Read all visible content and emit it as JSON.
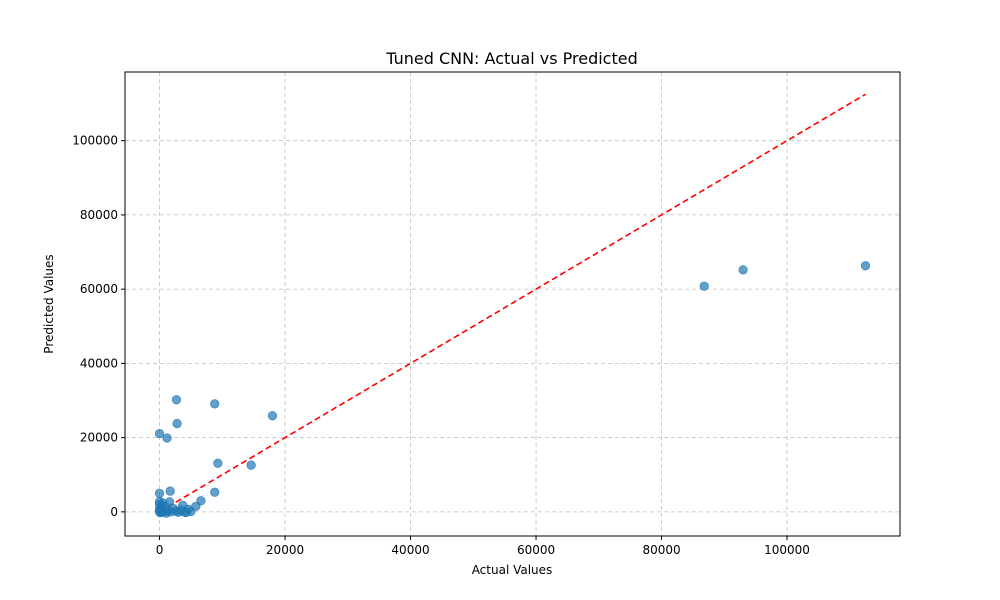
{
  "chart_data": {
    "type": "scatter",
    "title": "Tuned CNN: Actual vs Predicted",
    "xlabel": "Actual Values",
    "ylabel": "Predicted Values",
    "xlim": [
      -5500,
      118000
    ],
    "ylim": [
      -6500,
      118500
    ],
    "xticks": [
      0,
      20000,
      40000,
      60000,
      80000,
      100000
    ],
    "yticks": [
      0,
      20000,
      40000,
      60000,
      80000,
      100000
    ],
    "xtick_labels": [
      "0",
      "20000",
      "40000",
      "60000",
      "80000",
      "100000"
    ],
    "ytick_labels": [
      "0",
      "20000",
      "40000",
      "60000",
      "80000",
      "100000"
    ],
    "grid": true,
    "point_color": "#1f77b4",
    "reference_line": {
      "x": [
        0,
        112500
      ],
      "y": [
        0,
        112500
      ],
      "color": "#ff0000",
      "style": "dashed"
    },
    "series": [
      {
        "points": [
          {
            "x": 112500,
            "y": 66300
          },
          {
            "x": 93000,
            "y": 65200
          },
          {
            "x": 86800,
            "y": 60800
          },
          {
            "x": 2700,
            "y": 30200
          },
          {
            "x": 8800,
            "y": 29100
          },
          {
            "x": 18000,
            "y": 25900
          },
          {
            "x": 2800,
            "y": 23800
          },
          {
            "x": 0,
            "y": 21100
          },
          {
            "x": 1200,
            "y": 19900
          },
          {
            "x": 9300,
            "y": 13100
          },
          {
            "x": 14600,
            "y": 12600
          },
          {
            "x": 1700,
            "y": 5600
          },
          {
            "x": 8800,
            "y": 5300
          },
          {
            "x": 0,
            "y": 5000
          },
          {
            "x": 6600,
            "y": 3000
          },
          {
            "x": 0,
            "y": 2800
          },
          {
            "x": 500,
            "y": 2400
          },
          {
            "x": 1600,
            "y": 2700
          },
          {
            "x": 0,
            "y": 2000
          },
          {
            "x": 5800,
            "y": 1500
          },
          {
            "x": 3700,
            "y": 1800
          },
          {
            "x": 200,
            "y": 1200
          },
          {
            "x": 900,
            "y": 1500
          },
          {
            "x": 2200,
            "y": 900
          },
          {
            "x": 4600,
            "y": 700
          },
          {
            "x": 3400,
            "y": 500
          },
          {
            "x": 0,
            "y": 700
          },
          {
            "x": 300,
            "y": 400
          },
          {
            "x": 1300,
            "y": 300
          },
          {
            "x": 700,
            "y": 100
          },
          {
            "x": 0,
            "y": 100
          },
          {
            "x": 1800,
            "y": 0
          },
          {
            "x": 2600,
            "y": 200
          },
          {
            "x": 3900,
            "y": 0
          },
          {
            "x": 5000,
            "y": 100
          },
          {
            "x": 500,
            "y": -100
          },
          {
            "x": 100,
            "y": -200
          },
          {
            "x": 1100,
            "y": -300
          },
          {
            "x": 4200,
            "y": -200
          },
          {
            "x": 3000,
            "y": -100
          }
        ]
      }
    ]
  }
}
